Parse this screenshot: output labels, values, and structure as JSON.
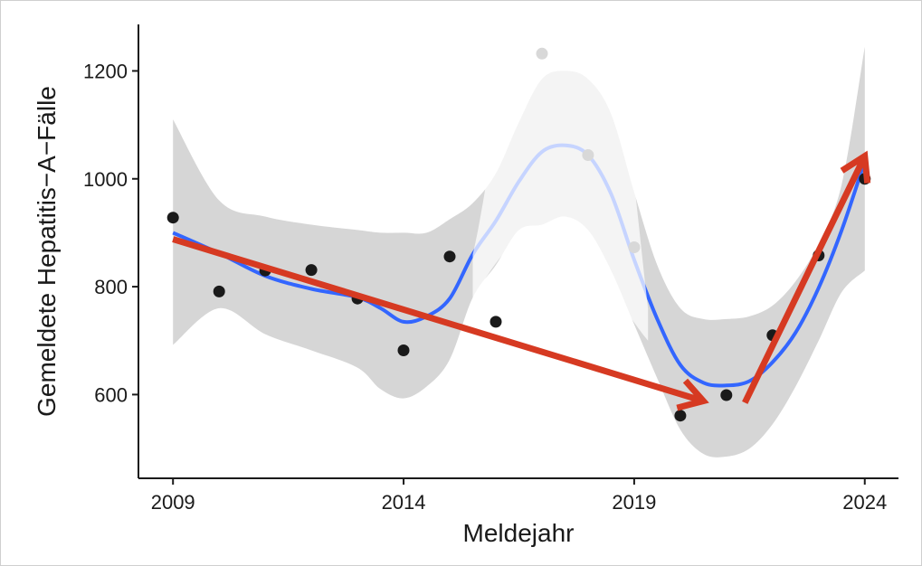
{
  "chart_data": {
    "type": "scatter",
    "title": "",
    "xlabel": "Meldejahr",
    "ylabel": "Gemeldete Hepatitis−A−Fälle",
    "xlim": [
      2008.75,
      2024.75
    ],
    "ylim": [
      480,
      1280
    ],
    "x_ticks": [
      2009,
      2014,
      2019,
      2024
    ],
    "y_ticks": [
      600,
      800,
      1000,
      1200
    ],
    "grid": false,
    "legend": "none",
    "points": [
      {
        "x": 2009,
        "y": 928,
        "dimmed": false
      },
      {
        "x": 2010,
        "y": 791,
        "dimmed": false
      },
      {
        "x": 2011,
        "y": 830,
        "dimmed": false
      },
      {
        "x": 2012,
        "y": 831,
        "dimmed": false
      },
      {
        "x": 2013,
        "y": 778,
        "dimmed": false
      },
      {
        "x": 2014,
        "y": 682,
        "dimmed": false
      },
      {
        "x": 2015,
        "y": 856,
        "dimmed": false
      },
      {
        "x": 2016,
        "y": 735,
        "dimmed": false
      },
      {
        "x": 2017,
        "y": 1232,
        "dimmed": true
      },
      {
        "x": 2018,
        "y": 1044,
        "dimmed": true
      },
      {
        "x": 2019,
        "y": 873,
        "dimmed": true
      },
      {
        "x": 2020,
        "y": 561,
        "dimmed": false
      },
      {
        "x": 2021,
        "y": 599,
        "dimmed": false
      },
      {
        "x": 2022,
        "y": 710,
        "dimmed": false
      },
      {
        "x": 2023,
        "y": 858,
        "dimmed": false
      },
      {
        "x": 2024,
        "y": 1000,
        "dimmed": false
      }
    ],
    "smooth_line": {
      "x": [
        2009,
        2010,
        2011,
        2012,
        2013,
        2013.5,
        2014,
        2014.5,
        2015,
        2015.5,
        2016,
        2016.5,
        2017,
        2017.5,
        2018,
        2018.5,
        2019,
        2019.5,
        2020,
        2020.5,
        2021,
        2021.5,
        2022,
        2022.5,
        2023,
        2023.5,
        2024
      ],
      "y": [
        900,
        862,
        820,
        796,
        780,
        760,
        735,
        745,
        778,
        860,
        922,
        995,
        1050,
        1062,
        1044,
        972,
        850,
        740,
        655,
        622,
        617,
        625,
        660,
        715,
        798,
        905,
        1033
      ]
    },
    "confidence_band": {
      "x": [
        2009,
        2010,
        2011,
        2012,
        2013,
        2013.5,
        2014,
        2014.5,
        2015,
        2015.5,
        2016,
        2016.5,
        2017,
        2017.5,
        2018,
        2018.5,
        2019,
        2019.5,
        2020,
        2020.5,
        2021,
        2021.5,
        2022,
        2022.5,
        2023,
        2023.5,
        2024
      ],
      "upper": [
        1110,
        960,
        930,
        915,
        905,
        900,
        900,
        900,
        925,
        955,
        1010,
        1105,
        1185,
        1200,
        1185,
        1120,
        975,
        840,
        760,
        740,
        740,
        745,
        765,
        810,
        880,
        990,
        1245
      ],
      "lower": [
        692,
        760,
        712,
        682,
        650,
        610,
        593,
        615,
        665,
        780,
        840,
        905,
        915,
        930,
        905,
        830,
        730,
        630,
        535,
        490,
        485,
        500,
        545,
        615,
        700,
        790,
        830
      ]
    },
    "highlight_region": {
      "x_from": 2015.5,
      "x_to": 2019.3
    },
    "annotations": [
      {
        "type": "arrow",
        "color": "#d63a22",
        "from": {
          "x": 2009,
          "y": 888
        },
        "to": {
          "x": 2020.5,
          "y": 588
        }
      },
      {
        "type": "arrow",
        "color": "#d63a22",
        "from": {
          "x": 2021.4,
          "y": 585
        },
        "to": {
          "x": 2024,
          "y": 1042
        }
      }
    ],
    "colors": {
      "point": "#1a1a1a",
      "point_dimmed": "#d8d8d8",
      "line": "#3366ff",
      "band": "#d6d6d6",
      "arrow": "#d63a22"
    }
  }
}
